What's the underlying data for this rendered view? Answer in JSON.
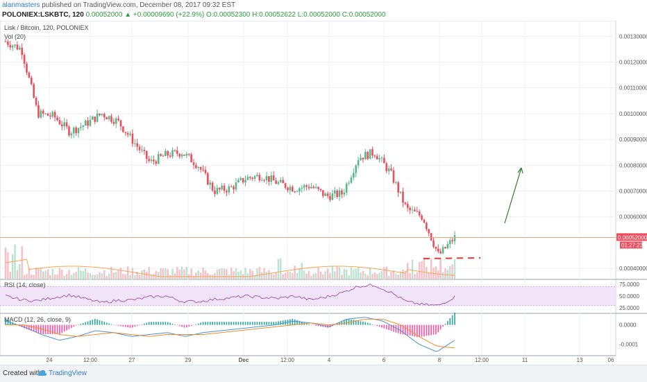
{
  "header": {
    "author": "alanmasters",
    "published": "published on TradingView.com, December 08, 2017 09:32 EST",
    "symbol": "POLONIEX:LSKBTC, 120",
    "last": "0.00052000",
    "change": "▲ +0.00009690 (+22.9%)",
    "ohlc": "O:0.00052300 H:0.00052622 L:0.00052000 C:0.00052000"
  },
  "footer": {
    "created": "Created with",
    "brand": "TradingView"
  },
  "colors": {
    "up": "#53b987",
    "down": "#eb4d5c",
    "vol_up": "#b9e3cf",
    "vol_down": "#f5bfc4",
    "ma": "#f5a45a",
    "rsi": "#a05fb0",
    "rsi_band": "#f1e3f8",
    "macd": "#4a90d6",
    "signal": "#f08c28",
    "hist_up": "#26a69a",
    "hist_down": "#ff4fa0",
    "price_line": "#f0a57a",
    "arrow": "#2f7d2a",
    "dash": "#e53935"
  },
  "chart_data": [
    {
      "type": "candlestick",
      "title": "Lisk / Bitcoin, 120, POLONIEX",
      "sub_label": "Vol (20)",
      "x_ticks": [
        "24",
        "12:00",
        "27",
        "29",
        "Dec",
        "12:00",
        "4",
        "6",
        "8",
        "12:00",
        "11",
        "13",
        "06"
      ],
      "y_ticks": [
        "0.00130000",
        "0.00120000",
        "0.00110000",
        "0.00100000",
        "0.00090000",
        "0.00080000",
        "0.00070000",
        "0.00060000",
        "0.00040000"
      ],
      "y_range": [
        0.00036,
        0.00136
      ],
      "current_price": "0.00052000",
      "countdown": "01:27:23",
      "close_path": [
        0.00128,
        0.00125,
        0.001,
        0.00099,
        0.00093,
        0.00096,
        0.001,
        0.00097,
        0.00089,
        0.00081,
        0.00084,
        0.00085,
        0.0008,
        0.0007,
        0.00071,
        0.00075,
        0.00076,
        0.00073,
        0.00071,
        0.00072,
        0.00068,
        0.00069,
        0.00083,
        0.00085,
        0.00077,
        0.00063,
        0.0006,
        0.00045,
        0.00052
      ]
    },
    {
      "type": "line",
      "title": "RSI (14, close)",
      "y_ticks": [
        "75.0000",
        "50.0000",
        "25.0000"
      ],
      "y_range": [
        15,
        85
      ],
      "band": [
        30,
        70
      ],
      "values": [
        50,
        42,
        40,
        47,
        52,
        44,
        36,
        41,
        42,
        48,
        50,
        39,
        38,
        43,
        46,
        50,
        47,
        45,
        50,
        42,
        48,
        57,
        71,
        73,
        58,
        38,
        32,
        30,
        48
      ]
    },
    {
      "type": "line",
      "title": "MACD (12, 26, close, 9)",
      "y_ticks": [
        "0.0000",
        "-0.0001"
      ],
      "y_range": [
        -0.00016,
        6e-05
      ],
      "series": [
        {
          "name": "MACD",
          "values": [
            2e-05,
            -1e-05,
            -5e-05,
            -8e-05,
            -6e-05,
            -3e-05,
            -4e-05,
            -6e-05,
            -5e-05,
            -4e-05,
            -6e-05,
            -4e-05,
            -3e-05,
            -2e-05,
            -1e-05,
            0.0,
            2e-05,
            1e-05,
            -1e-05,
            3e-05,
            4e-05,
            2e-05,
            -3e-05,
            -0.0001,
            -0.00014,
            -8e-05
          ]
        },
        {
          "name": "Signal",
          "values": [
            0.0,
            0.0,
            -2e-05,
            -5e-05,
            -6e-05,
            -5e-05,
            -4e-05,
            -5e-05,
            -6e-05,
            -5e-05,
            -5e-05,
            -5e-05,
            -4e-05,
            -3e-05,
            -2e-05,
            -1e-05,
            0.0,
            1e-05,
            0.0,
            1e-05,
            3e-05,
            3e-05,
            0.0,
            -6e-05,
            -0.00011,
            -0.00012
          ]
        }
      ]
    }
  ]
}
